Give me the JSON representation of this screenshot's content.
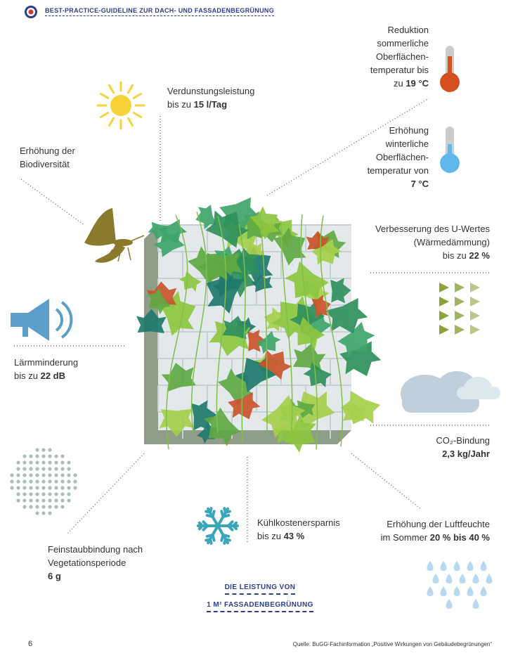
{
  "header": {
    "title": "BEST-PRACTICE-GUIDELINE ZUR DACH- UND FASSADENBEGRÜNUNG"
  },
  "items": [
    {
      "lines": [
        "Verdunstungsleistung"
      ],
      "prefix": "bis zu",
      "value": "15 l/Tag"
    },
    {
      "lines": [
        "Erhöhung der",
        "Biodiversität"
      ]
    },
    {
      "lines": [
        "Reduktion",
        "sommerliche",
        "Oberflächen-",
        "temperatur bis"
      ],
      "prefix": "zu",
      "value": "19 °C"
    },
    {
      "lines": [
        "Erhöhung",
        "winterliche",
        "Oberflächen-",
        "temperatur von"
      ],
      "value": "7 °C"
    },
    {
      "lines": [
        "Verbesserung des U-Wertes",
        "(Wärmedämmung)"
      ],
      "prefix": "bis zu",
      "value": "22 %"
    },
    {
      "lines": [
        "Lärmminderung"
      ],
      "prefix": "bis zu",
      "value": "22 dB"
    },
    {
      "lines": [
        "CO₂-Bindung"
      ],
      "value": "2,3 kg/Jahr"
    },
    {
      "lines": [
        "Kühlkostenersparnis"
      ],
      "prefix": "bis zu",
      "value": "43 %"
    },
    {
      "lines": [
        "Erhöhung der Luftfeuchte"
      ],
      "prefix": "im Sommer",
      "value": "20 % bis 40 %"
    },
    {
      "lines": [
        "Feinstaubbindung nach",
        "Vegetationsperiode"
      ],
      "value": "6 g"
    }
  ],
  "center": {
    "line1": "DIE LEISTUNG VON",
    "line2": "1 M² FASSADENBEGRÜNUNG"
  },
  "footer": {
    "page": "6",
    "source": "Quelle: BuGG-Fachinformation „Positive Wirkungen von Gebäudebegrünungen“"
  }
}
